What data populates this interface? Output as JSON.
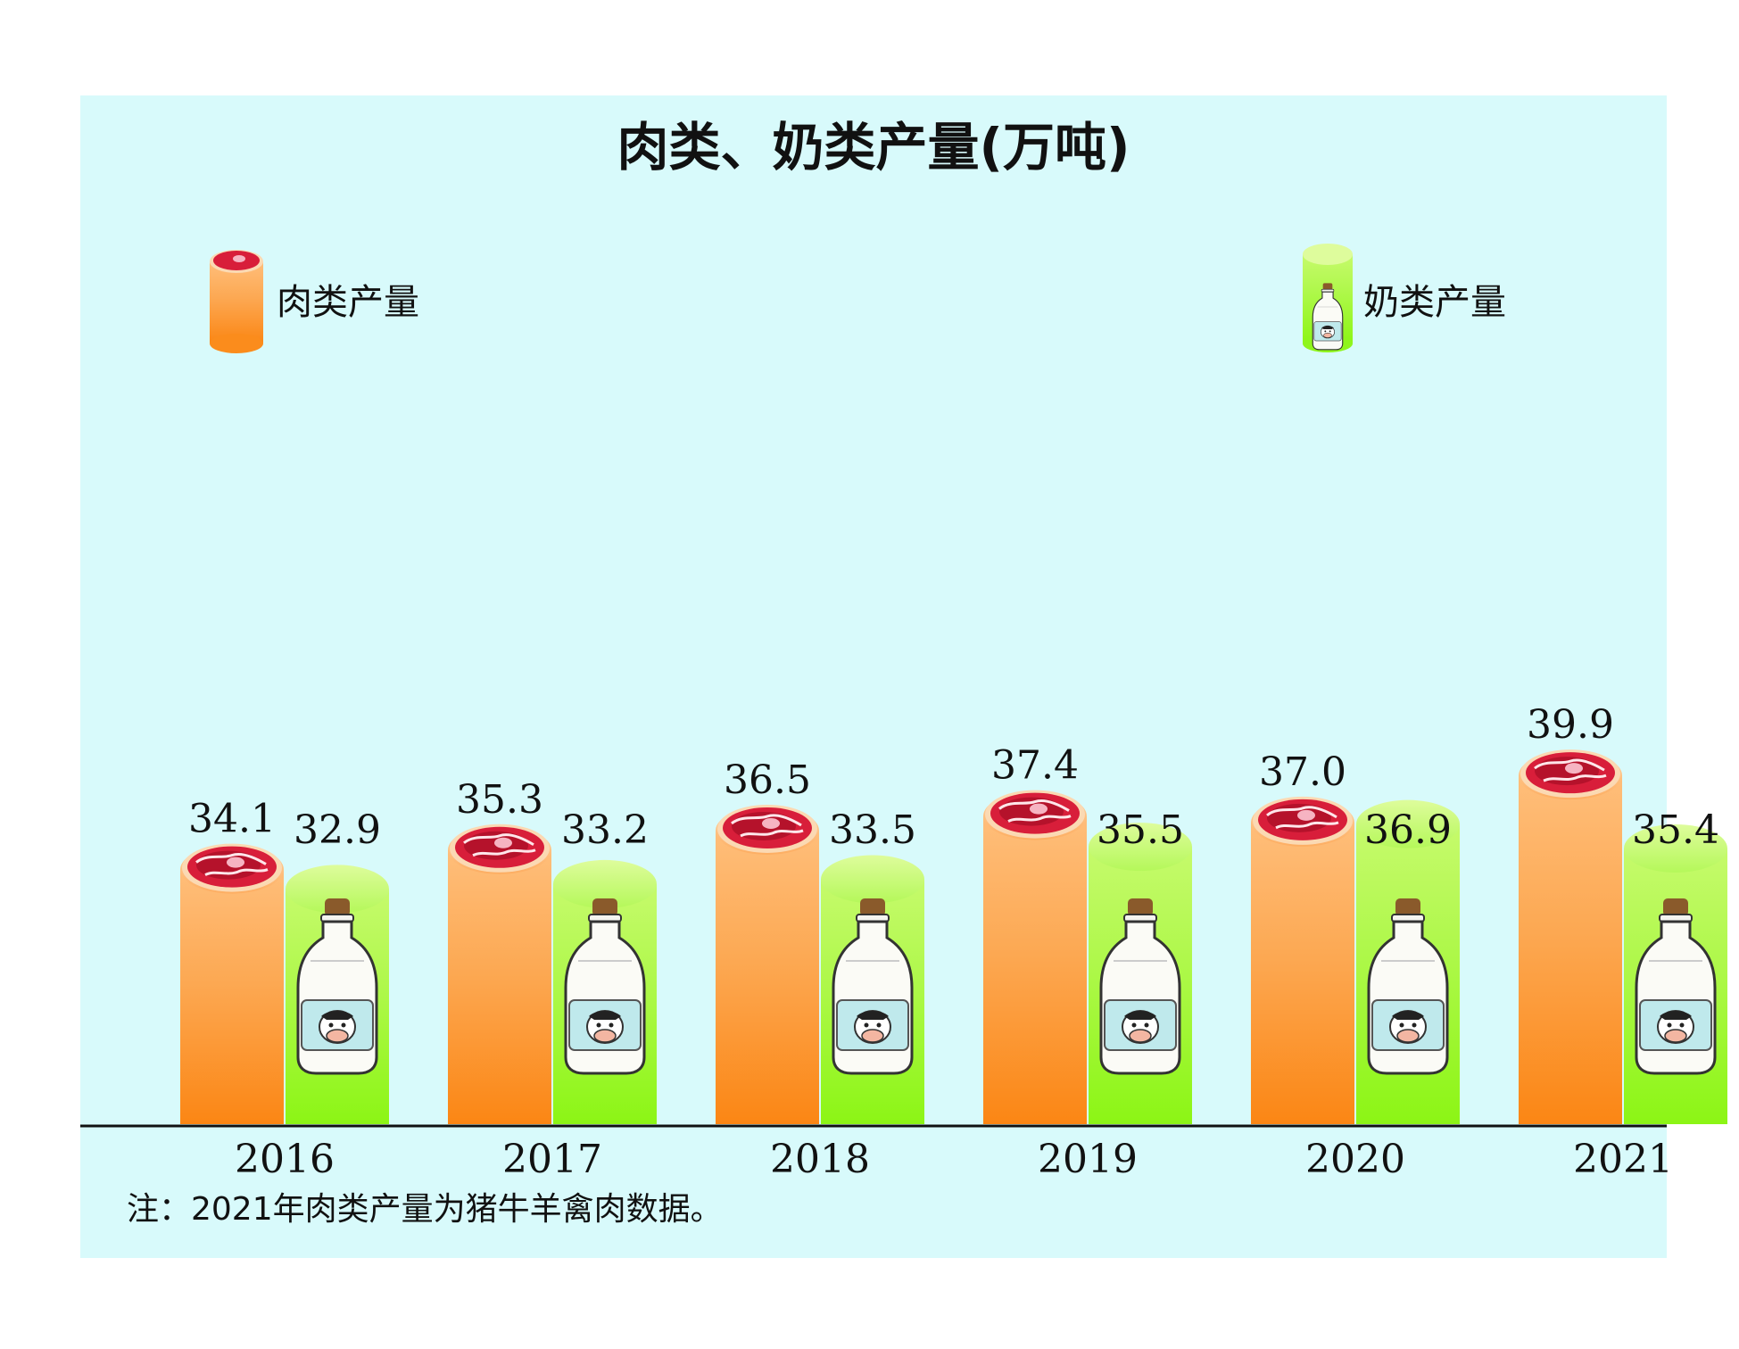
{
  "chart_data": {
    "type": "bar",
    "title": "肉类、奶类产量(万吨)",
    "categories": [
      "2016",
      "2017",
      "2018",
      "2019",
      "2020",
      "2021"
    ],
    "series": [
      {
        "name": "肉类产量",
        "values": [
          34.1,
          35.3,
          36.5,
          37.4,
          37.0,
          39.9
        ]
      },
      {
        "name": "奶类产量",
        "values": [
          32.9,
          33.2,
          33.5,
          35.5,
          36.9,
          35.4
        ]
      }
    ],
    "data_labels": [
      [
        "34.1",
        "35.3",
        "36.5",
        "37.4",
        "37.0",
        "39.9"
      ],
      [
        "32.9",
        "33.2",
        "33.5",
        "35.5",
        "36.9",
        "35.4"
      ]
    ],
    "legend_position": "top",
    "grid": false,
    "note": "注：2021年肉类产量为猪牛羊禽肉数据。",
    "colors": {
      "meat": "#fb8c1c",
      "meat_light": "#ffbd77",
      "milk": "#8ff51c",
      "milk_light": "#c8fb70",
      "panel": "#d8fafb",
      "meat_icon": "#d81e3a"
    },
    "icons": {
      "meat": "meat-slice-icon",
      "milk": "milk-bottle-icon"
    }
  }
}
